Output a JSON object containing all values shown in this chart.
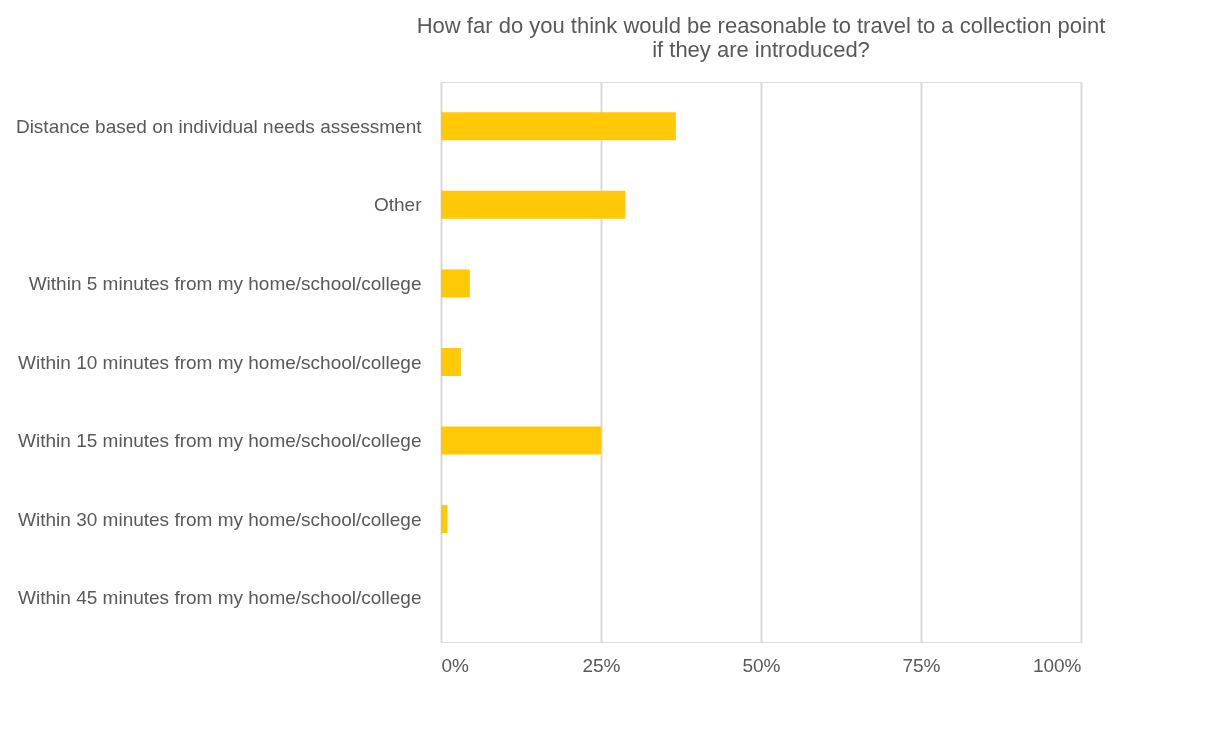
{
  "chart_data": {
    "type": "bar",
    "orientation": "horizontal",
    "title": [
      "How far do you think would be reasonable to travel to a collection point",
      "if they are introduced?"
    ],
    "categories": [
      "Distance based on individual needs assessment",
      "Other",
      "Within 5 minutes from my home/school/college",
      "Within 10 minutes from my home/school/college",
      "Within 15 minutes from my home/school/college",
      "Within 30 minutes from my home/school/college",
      "Within 45 minutes from my home/school/college"
    ],
    "values": [
      36.7,
      28.8,
      4.5,
      3.1,
      25,
      1,
      0
    ],
    "color": "#ffc907",
    "xlim": [
      0,
      100
    ],
    "xticks": [
      {
        "value": 0,
        "label": "0%"
      },
      {
        "value": 25,
        "label": "25%"
      },
      {
        "value": 50,
        "label": "50%"
      },
      {
        "value": 75,
        "label": "75%"
      },
      {
        "value": 100,
        "label": "100%"
      }
    ],
    "grid": "x"
  }
}
